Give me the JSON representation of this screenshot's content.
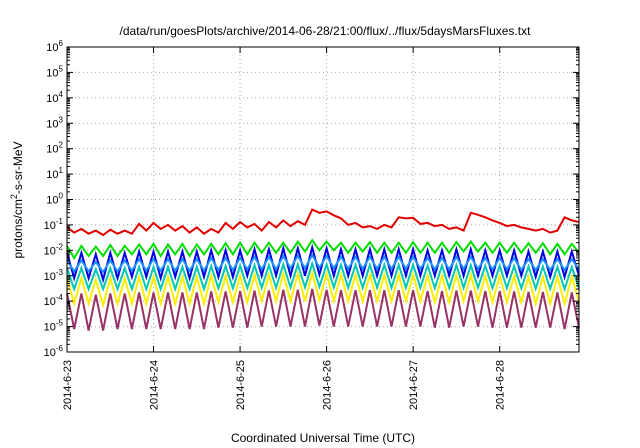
{
  "chart_data": {
    "type": "line",
    "title": "/data/run/goesPlots/archive/2014-06-28/21:00/flux/../flux/5daysMarsFluxes.txt",
    "xlabel": "Coordinated Universal Time (UTC)",
    "ylabel": {
      "prefix": "protons/cm",
      "sup": "2",
      "suffix": "-s-sr-MeV"
    },
    "x_scale": "time",
    "x_range": [
      "2014-06-23T00:00",
      "2014-06-28T22:00"
    ],
    "x_ticks": [
      "2014-6-23",
      "2014-6-24",
      "2014-6-25",
      "2014-6-26",
      "2014-6-27",
      "2014-6-28"
    ],
    "y_scale": "log",
    "y_range": [
      1e-06,
      1000000.0
    ],
    "y_ticks": [
      {
        "base": "10",
        "exp": "-6"
      },
      {
        "base": "10",
        "exp": "-5"
      },
      {
        "base": "10",
        "exp": "-4"
      },
      {
        "base": "10",
        "exp": "-3"
      },
      {
        "base": "10",
        "exp": "-2"
      },
      {
        "base": "10",
        "exp": "-1"
      },
      {
        "base": "10",
        "exp": "0"
      },
      {
        "base": "10",
        "exp": "1"
      },
      {
        "base": "10",
        "exp": "2"
      },
      {
        "base": "10",
        "exp": "3"
      },
      {
        "base": "10",
        "exp": "4"
      },
      {
        "base": "10",
        "exp": "5"
      },
      {
        "base": "10",
        "exp": "6"
      }
    ],
    "grid": true,
    "legend": "none",
    "series": [
      {
        "color": "#e00000",
        "x": [
          "2014-06-23T00:00",
          "2014-06-23T02:00",
          "2014-06-23T04:00",
          "2014-06-23T06:00",
          "2014-06-23T08:00",
          "2014-06-23T10:00",
          "2014-06-23T12:00",
          "2014-06-23T14:00",
          "2014-06-23T16:00",
          "2014-06-23T18:00",
          "2014-06-23T20:00",
          "2014-06-23T22:00",
          "2014-06-24T00:00",
          "2014-06-24T02:00",
          "2014-06-24T04:00",
          "2014-06-24T06:00",
          "2014-06-24T08:00",
          "2014-06-24T10:00",
          "2014-06-24T12:00",
          "2014-06-24T14:00",
          "2014-06-24T16:00",
          "2014-06-24T18:00",
          "2014-06-24T20:00",
          "2014-06-24T22:00",
          "2014-06-25T00:00",
          "2014-06-25T02:00",
          "2014-06-25T04:00",
          "2014-06-25T06:00",
          "2014-06-25T08:00",
          "2014-06-25T10:00",
          "2014-06-25T12:00",
          "2014-06-25T14:00",
          "2014-06-25T16:00",
          "2014-06-25T18:00",
          "2014-06-25T20:00",
          "2014-06-25T22:00",
          "2014-06-26T00:00",
          "2014-06-26T02:00",
          "2014-06-26T04:00",
          "2014-06-26T06:00",
          "2014-06-26T08:00",
          "2014-06-26T10:00",
          "2014-06-26T12:00",
          "2014-06-26T14:00",
          "2014-06-26T16:00",
          "2014-06-26T18:00",
          "2014-06-26T20:00",
          "2014-06-26T22:00",
          "2014-06-27T00:00",
          "2014-06-27T02:00",
          "2014-06-27T04:00",
          "2014-06-27T06:00",
          "2014-06-27T08:00",
          "2014-06-27T10:00",
          "2014-06-27T12:00",
          "2014-06-27T14:00",
          "2014-06-27T16:00",
          "2014-06-27T18:00",
          "2014-06-27T20:00",
          "2014-06-27T22:00",
          "2014-06-28T00:00",
          "2014-06-28T02:00",
          "2014-06-28T04:00",
          "2014-06-28T06:00",
          "2014-06-28T08:00",
          "2014-06-28T10:00",
          "2014-06-28T12:00",
          "2014-06-28T14:00",
          "2014-06-28T16:00",
          "2014-06-28T18:00",
          "2014-06-28T20:00",
          "2014-06-28T22:00"
        ],
        "y": [
          0.08,
          0.05,
          0.07,
          0.045,
          0.06,
          0.04,
          0.065,
          0.045,
          0.06,
          0.045,
          0.11,
          0.06,
          0.12,
          0.07,
          0.1,
          0.06,
          0.09,
          0.05,
          0.08,
          0.045,
          0.07,
          0.05,
          0.12,
          0.07,
          0.13,
          0.08,
          0.11,
          0.06,
          0.13,
          0.08,
          0.15,
          0.09,
          0.14,
          0.1,
          0.4,
          0.3,
          0.34,
          0.24,
          0.18,
          0.1,
          0.12,
          0.08,
          0.09,
          0.07,
          0.1,
          0.08,
          0.2,
          0.18,
          0.19,
          0.11,
          0.12,
          0.09,
          0.1,
          0.07,
          0.08,
          0.06,
          0.3,
          0.25,
          0.2,
          0.15,
          0.12,
          0.09,
          0.1,
          0.08,
          0.07,
          0.06,
          0.07,
          0.05,
          0.06,
          0.2,
          0.15,
          0.13
        ]
      },
      {
        "color": "#00dd00",
        "x_ticks_from": "first",
        "y": [
          0.015,
          0.005,
          0.015,
          0.006,
          0.014,
          0.006,
          0.016,
          0.006,
          0.015,
          0.007,
          0.017,
          0.007,
          0.018,
          0.006,
          0.017,
          0.007,
          0.018,
          0.006,
          0.017,
          0.007,
          0.018,
          0.007,
          0.019,
          0.007,
          0.02,
          0.007,
          0.02,
          0.008,
          0.02,
          0.008,
          0.02,
          0.008,
          0.022,
          0.009,
          0.025,
          0.01,
          0.022,
          0.01,
          0.02,
          0.008,
          0.02,
          0.009,
          0.021,
          0.008,
          0.02,
          0.008,
          0.02,
          0.008,
          0.021,
          0.008,
          0.02,
          0.008,
          0.02,
          0.008,
          0.021,
          0.009,
          0.022,
          0.009,
          0.02,
          0.008,
          0.02,
          0.008,
          0.02,
          0.008,
          0.019,
          0.008,
          0.019,
          0.007,
          0.018,
          0.007,
          0.018,
          0.008
        ]
      },
      {
        "color": "#0000e0",
        "x_ticks_from": "first",
        "y": [
          0.008,
          0.0008,
          0.008,
          0.0008,
          0.007,
          0.0007,
          0.008,
          0.0008,
          0.008,
          0.0009,
          0.009,
          0.0009,
          0.009,
          0.0008,
          0.009,
          0.0009,
          0.009,
          0.0008,
          0.009,
          0.0009,
          0.01,
          0.0009,
          0.01,
          0.0009,
          0.01,
          0.001,
          0.011,
          0.001,
          0.011,
          0.001,
          0.012,
          0.001,
          0.012,
          0.001,
          0.013,
          0.0011,
          0.012,
          0.001,
          0.011,
          0.001,
          0.011,
          0.001,
          0.011,
          0.001,
          0.011,
          0.001,
          0.011,
          0.001,
          0.011,
          0.001,
          0.01,
          0.001,
          0.01,
          0.001,
          0.011,
          0.001,
          0.011,
          0.001,
          0.01,
          0.001,
          0.01,
          0.001,
          0.01,
          0.001,
          0.009,
          0.0009,
          0.009,
          0.0009,
          0.009,
          0.0009,
          0.009,
          0.001
        ]
      },
      {
        "color": "#1e90ff",
        "x_ticks_from": "first",
        "y": [
          0.004,
          0.0015,
          0.004,
          0.0015,
          0.0035,
          0.0014,
          0.004,
          0.0015,
          0.004,
          0.0016,
          0.0045,
          0.0016,
          0.0045,
          0.0016,
          0.0045,
          0.0016,
          0.0045,
          0.0016,
          0.0045,
          0.0016,
          0.005,
          0.0017,
          0.005,
          0.0017,
          0.005,
          0.0018,
          0.0055,
          0.0018,
          0.0055,
          0.0018,
          0.006,
          0.002,
          0.006,
          0.002,
          0.0065,
          0.0021,
          0.006,
          0.002,
          0.0055,
          0.0019,
          0.0055,
          0.0019,
          0.0055,
          0.0019,
          0.0055,
          0.0019,
          0.0055,
          0.0019,
          0.0055,
          0.0019,
          0.005,
          0.0018,
          0.005,
          0.0018,
          0.0055,
          0.0019,
          0.0055,
          0.0019,
          0.005,
          0.0018,
          0.005,
          0.0018,
          0.005,
          0.0017,
          0.0045,
          0.0017,
          0.0045,
          0.0017,
          0.0045,
          0.0017,
          0.0045,
          0.0018
        ]
      },
      {
        "color": "#00c8b4",
        "x_ticks_from": "first",
        "y": [
          0.002,
          0.0003,
          0.002,
          0.0003,
          0.0018,
          0.0003,
          0.002,
          0.0003,
          0.002,
          0.0003,
          0.0022,
          0.0003,
          0.0022,
          0.0003,
          0.0022,
          0.0003,
          0.0022,
          0.0003,
          0.0022,
          0.0003,
          0.0024,
          0.00032,
          0.0024,
          0.00032,
          0.0025,
          0.00033,
          0.0026,
          0.00034,
          0.0026,
          0.00034,
          0.0028,
          0.00035,
          0.0028,
          0.00035,
          0.003,
          0.00037,
          0.0028,
          0.00035,
          0.0027,
          0.00034,
          0.0027,
          0.00034,
          0.0027,
          0.00034,
          0.0027,
          0.00034,
          0.0027,
          0.00034,
          0.0027,
          0.00034,
          0.0025,
          0.00033,
          0.0025,
          0.00033,
          0.0026,
          0.00034,
          0.0026,
          0.00034,
          0.0025,
          0.00033,
          0.0025,
          0.00033,
          0.0024,
          0.00032,
          0.0023,
          0.00031,
          0.0023,
          0.00031,
          0.0022,
          0.0003,
          0.0022,
          0.00032
        ]
      },
      {
        "color": "#ffee00",
        "x_ticks_from": "first",
        "y": [
          0.0008,
          8e-05,
          0.0008,
          8e-05,
          0.0007,
          7e-05,
          0.0008,
          8e-05,
          0.0008,
          8e-05,
          0.0009,
          8e-05,
          0.0009,
          8e-05,
          0.0009,
          8e-05,
          0.0009,
          8e-05,
          0.0009,
          8e-05,
          0.001,
          9e-05,
          0.001,
          9e-05,
          0.001,
          9e-05,
          0.0011,
          0.0001,
          0.0011,
          0.0001,
          0.0012,
          0.0001,
          0.0012,
          0.0001,
          0.0013,
          0.00011,
          0.0012,
          0.0001,
          0.0011,
          0.0001,
          0.0011,
          0.0001,
          0.0011,
          0.0001,
          0.0011,
          0.0001,
          0.0011,
          0.0001,
          0.0011,
          0.0001,
          0.001,
          9e-05,
          0.001,
          9e-05,
          0.0011,
          0.0001,
          0.0011,
          0.0001,
          0.001,
          9e-05,
          0.001,
          9e-05,
          0.001,
          9e-05,
          0.0009,
          8e-05,
          0.0009,
          8e-05,
          0.0009,
          8e-05,
          0.0009,
          9e-05
        ]
      },
      {
        "color": "#993366",
        "x_ticks_from": "first",
        "y": [
          0.0002,
          8e-06,
          0.0002,
          7e-06,
          0.00018,
          7e-06,
          0.0002,
          8e-06,
          0.0002,
          8e-06,
          0.00022,
          8e-06,
          0.00022,
          8e-06,
          0.00022,
          8e-06,
          0.00022,
          8e-06,
          0.00022,
          8e-06,
          0.00024,
          9e-06,
          0.00024,
          9e-06,
          0.00025,
          9e-06,
          0.00026,
          1e-05,
          0.00026,
          1e-05,
          0.00028,
          1e-05,
          0.00028,
          1e-05,
          0.0003,
          1.1e-05,
          0.00028,
          1e-05,
          0.00027,
          1e-05,
          0.00027,
          1e-05,
          0.00027,
          1e-05,
          0.00027,
          1e-05,
          0.00027,
          1e-05,
          0.00027,
          1e-05,
          0.00025,
          9e-06,
          0.00025,
          9e-06,
          0.00026,
          1e-05,
          0.00026,
          1e-05,
          0.00025,
          9e-06,
          0.00025,
          9e-06,
          0.00024,
          9e-06,
          0.00023,
          9e-06,
          0.00023,
          9e-06,
          0.00022,
          8e-06,
          0.00022,
          9e-06
        ]
      }
    ]
  }
}
